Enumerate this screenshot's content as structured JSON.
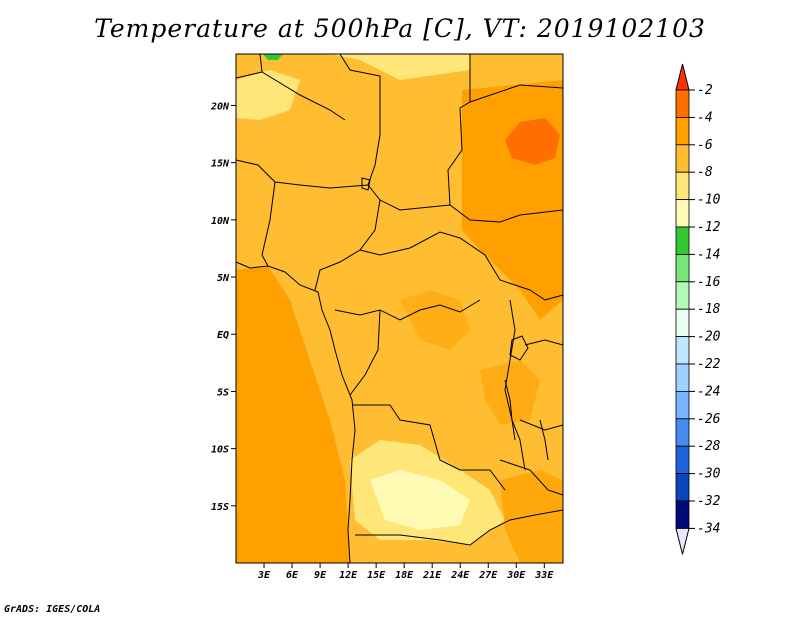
{
  "title": "Temperature at 500hPa [C], VT: 2019102103",
  "credit": "GrADS: IGES/COLA",
  "map": {
    "lon_range": [
      0,
      35
    ],
    "lat_range": [
      -20,
      24.5
    ],
    "lon_ticks": [
      "3E",
      "6E",
      "9E",
      "12E",
      "15E",
      "18E",
      "21E",
      "24E",
      "27E",
      "30E",
      "33E"
    ],
    "lon_tick_values": [
      3,
      6,
      9,
      12,
      15,
      18,
      21,
      24,
      27,
      30,
      33
    ],
    "lat_ticks": [
      "20N",
      "15N",
      "10N",
      "5N",
      "EQ",
      "5S",
      "10S",
      "15S"
    ],
    "lat_tick_values": [
      20,
      15,
      10,
      5,
      0,
      -5,
      -10,
      -15
    ]
  },
  "colorbar": {
    "labels": [
      "-2",
      "-4",
      "-6",
      "-8",
      "-10",
      "-12",
      "-14",
      "-16",
      "-18",
      "-20",
      "-22",
      "-24",
      "-26",
      "-28",
      "-30",
      "-32",
      "-34"
    ],
    "colors": [
      "#ff3200",
      "#ff6e00",
      "#ffa000",
      "#ffbe32",
      "#ffe678",
      "#fffab4",
      "#32c832",
      "#78e678",
      "#b4fab4",
      "#e6fff0",
      "#bee6ff",
      "#a0d2ff",
      "#78b4ff",
      "#468cf0",
      "#1e64dc",
      "#0a46be",
      "#000a78",
      "#e6e6ff"
    ]
  }
}
